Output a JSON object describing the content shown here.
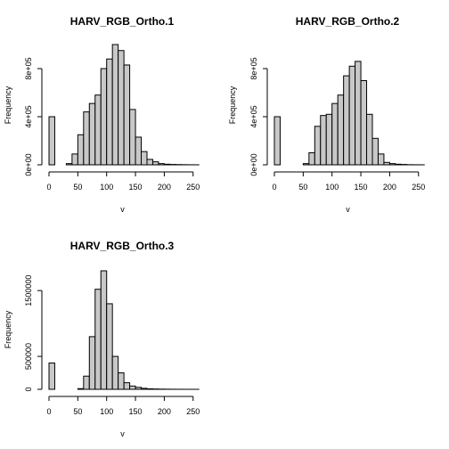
{
  "chart_data": [
    {
      "type": "bar",
      "title": "HARV_RGB_Ortho.1",
      "xlabel": "v",
      "ylabel": "Frequency",
      "bin_width": 10,
      "bin_starts": [
        0,
        10,
        20,
        30,
        40,
        50,
        60,
        70,
        80,
        90,
        100,
        110,
        120,
        130,
        140,
        150,
        160,
        170,
        180,
        190,
        200,
        210,
        220,
        230,
        240,
        250
      ],
      "values": [
        400000,
        0,
        0,
        10000,
        90000,
        250000,
        440000,
        510000,
        580000,
        800000,
        880000,
        1000000,
        950000,
        830000,
        460000,
        230000,
        110000,
        45000,
        25000,
        10000,
        5000,
        3000,
        2000,
        1000,
        500,
        300
      ],
      "xlim": [
        0,
        255
      ],
      "ylim": [
        0,
        1000000
      ],
      "x_ticks": [
        0,
        50,
        100,
        150,
        200,
        250
      ],
      "y_ticks": [
        0,
        400000,
        800000
      ],
      "y_tick_labels": [
        "0e+00",
        "4e+05",
        "8e+05"
      ],
      "grid": false
    },
    {
      "type": "bar",
      "title": "HARV_RGB_Ortho.2",
      "xlabel": "v",
      "ylabel": "Frequency",
      "bin_width": 10,
      "bin_starts": [
        0,
        10,
        20,
        30,
        40,
        50,
        60,
        70,
        80,
        90,
        100,
        110,
        120,
        130,
        140,
        150,
        160,
        170,
        180,
        190,
        200,
        210,
        220,
        230,
        240,
        250
      ],
      "values": [
        400000,
        0,
        0,
        0,
        0,
        10000,
        100000,
        320000,
        410000,
        420000,
        510000,
        580000,
        740000,
        820000,
        860000,
        700000,
        420000,
        220000,
        90000,
        20000,
        10000,
        5000,
        3000,
        1000,
        500,
        300
      ],
      "xlim": [
        0,
        255
      ],
      "ylim": [
        0,
        1000000
      ],
      "x_ticks": [
        0,
        50,
        100,
        150,
        200,
        250
      ],
      "y_ticks": [
        0,
        400000,
        800000
      ],
      "y_tick_labels": [
        "0e+00",
        "4e+05",
        "8e+05"
      ],
      "grid": false
    },
    {
      "type": "bar",
      "title": "HARV_RGB_Ortho.3",
      "xlabel": "v",
      "ylabel": "Frequency",
      "bin_width": 10,
      "bin_starts": [
        0,
        10,
        20,
        30,
        40,
        50,
        60,
        70,
        80,
        90,
        100,
        110,
        120,
        130,
        140,
        150,
        160,
        170,
        180,
        190,
        200,
        210,
        220,
        230,
        240,
        250
      ],
      "values": [
        400000,
        0,
        0,
        0,
        0,
        10000,
        200000,
        800000,
        1520000,
        1800000,
        1300000,
        500000,
        250000,
        100000,
        50000,
        30000,
        15000,
        8000,
        5000,
        3000,
        2000,
        1000,
        500,
        300,
        200,
        100
      ],
      "xlim": [
        0,
        255
      ],
      "ylim": [
        0,
        1800000
      ],
      "x_ticks": [
        0,
        50,
        100,
        150,
        200,
        250
      ],
      "y_ticks": [
        0,
        500000,
        1500000
      ],
      "y_tick_labels": [
        "0",
        "500000",
        "1500000"
      ],
      "grid": false
    }
  ]
}
